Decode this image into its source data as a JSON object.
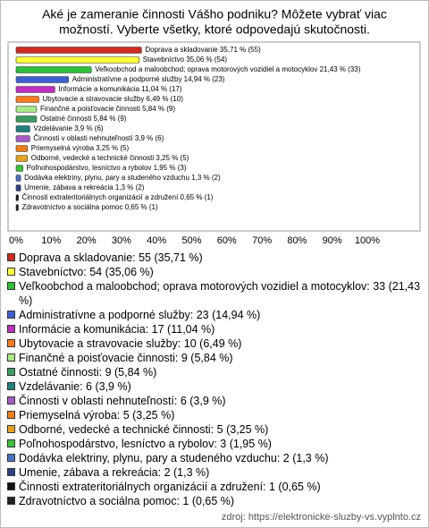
{
  "chart_data": {
    "type": "bar",
    "orientation": "horizontal",
    "title": [
      "Aké je zameranie činnosti Vášho podniku? Môžete vybrať viac",
      "možností. Vyberte všetky, ktoré odpovedajú skutočnosti."
    ],
    "categories": [
      "Doprava a skladovanie",
      "Stavebníctvo",
      "Veľkoobchod a maloobchod; oprava motorových vozidiel a motocyklov",
      "Administratívne a podporné služby",
      "Informácie a komunikácia",
      "Ubytovacie a stravovacie služby",
      "Finančné a poisťovacie činnosti",
      "Ostatné činnosti",
      "Vzdelávanie",
      "Činnosti v oblasti nehnuteľností",
      "Priemyselná výroba",
      "Odborné, vedecké a technické činnosti",
      "Poľnohospodárstvo, lesníctvo a rybolov",
      "Dodávka elektriny, plynu, pary a studeného vzduchu",
      "Umenie, zábava a rekreácia",
      "Činnosti extrateritoriálnych organizácií a združení",
      "Zdravotníctvo a sociálna pomoc"
    ],
    "values": [
      35.71,
      35.06,
      21.43,
      14.94,
      11.04,
      6.49,
      5.84,
      5.84,
      3.9,
      3.9,
      3.25,
      3.25,
      1.95,
      1.3,
      1.3,
      0.65,
      0.65
    ],
    "value_labels": [
      "Doprava a skladovanie 35,71 % (55)",
      "Stavebníctvo 35,06 % (54)",
      "Veľkoobchod a maloobchod; oprava motorových vozidiel a motocyklov 21,43 % (33)",
      "Administratívne a podporné služby 14,94 % (23)",
      "Informácie a komunikácia 11,04 % (17)",
      "Ubytovacie a stravovacie služby 6,49 % (10)",
      "Finančné a poisťovacie činnosti 5,84 % (9)",
      "Ostatné činnosti 5,84 % (9)",
      "Vzdelávanie 3,9 % (6)",
      "Činnosti v oblasti nehnuteľností 3,9 % (6)",
      "Priemyselná výroba 3,25 % (5)",
      "Odborné, vedecké a technické činnosti 3,25 % (5)",
      "Poľnohospodárstvo, lesníctvo a rybolov 1,95 % (3)",
      "Dodávka elektriny, plynu, pary a studeného vzduchu 1,3 % (2)",
      "Umenie, zábava a rekreácia 1,3 % (2)",
      "Činnosti extrateritoriálnych organizácií a združení 0,65 % (1)",
      "Zdravotníctvo a sociálna pomoc 0,65 % (1)"
    ],
    "legend": [
      "Doprava a skladovanie: 55 (35,71 %)",
      "Stavebníctvo: 54 (35,06 %)",
      "Veľkoobchod a maloobchod; oprava motorových vozidiel a motocyklov: 33 (21,43 %)",
      "Administratívne a podporné služby: 23 (14,94 %)",
      "Informácie a komunikácia: 17 (11,04 %)",
      "Ubytovacie a stravovacie služby: 10 (6,49 %)",
      "Finančné a poisťovacie činnosti: 9 (5,84 %)",
      "Ostatné činnosti: 9 (5,84 %)",
      "Vzdelávanie: 6 (3,9 %)",
      "Činnosti v oblasti nehnuteľností: 6 (3,9 %)",
      "Priemyselná výroba: 5 (3,25 %)",
      "Odborné, vedecké a technické činnosti: 5 (3,25 %)",
      "Poľnohospodárstvo, lesníctvo a rybolov: 3 (1,95 %)",
      "Dodávka elektriny, plynu, pary a studeného vzduchu: 2 (1,3 %)",
      "Umenie, zábava a rekreácia: 2 (1,3 %)",
      "Činnosti extrateritoriálnych organizácií a združení: 1 (0,65 %)",
      "Zdravotníctvo a sociálna pomoc: 1 (0,65 %)"
    ],
    "colors": [
      "#d02a22",
      "#ffff3c",
      "#2fbf3a",
      "#3f5fd0",
      "#c02fc0",
      "#ff7a1e",
      "#a8e888",
      "#3a9a60",
      "#1f7f80",
      "#a45cc4",
      "#f0801c",
      "#e4a622",
      "#3cc23c",
      "#4672c4",
      "#2f3f86",
      "#111111",
      "#222222"
    ],
    "xlim": [
      0,
      100
    ],
    "xticks": [
      {
        "value": 0,
        "label": "0%"
      },
      {
        "value": 10,
        "label": "10%"
      },
      {
        "value": 20,
        "label": "20%"
      },
      {
        "value": 30,
        "label": "30%"
      },
      {
        "value": 40,
        "label": "40%"
      },
      {
        "value": 50,
        "label": "50%"
      },
      {
        "value": 60,
        "label": "60%"
      },
      {
        "value": 70,
        "label": "70%"
      },
      {
        "value": 80,
        "label": "80%"
      },
      {
        "value": 90,
        "label": "90%"
      },
      {
        "value": 100,
        "label": "100%"
      }
    ],
    "grid": false,
    "source": "zdroj: https://elektronicke-sluzby-vs.vyplnto.cz"
  }
}
